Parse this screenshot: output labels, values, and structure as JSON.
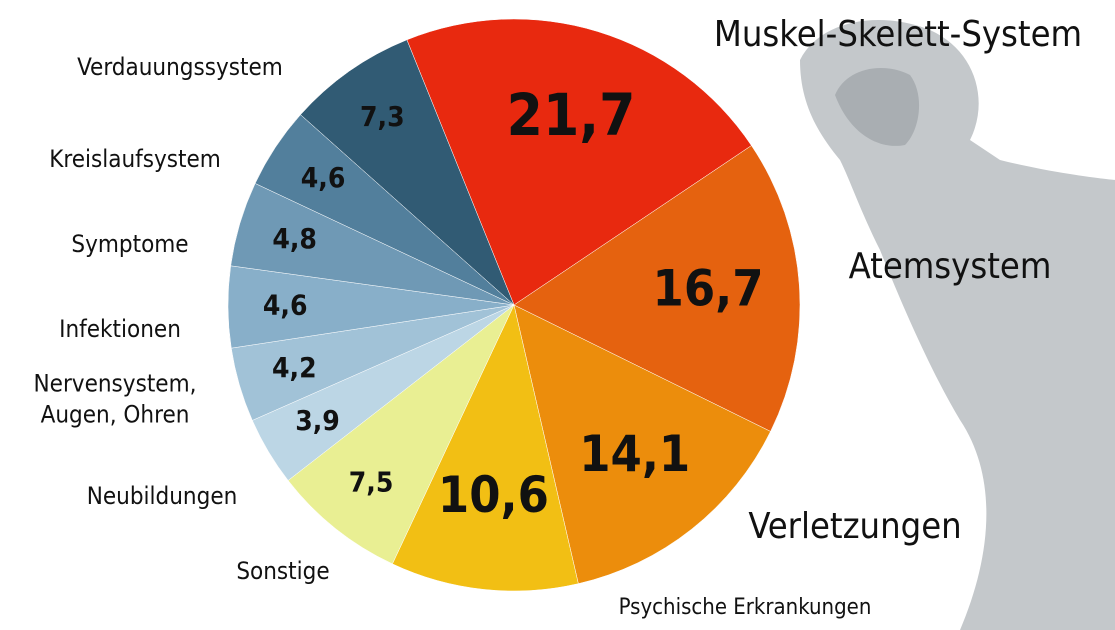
{
  "chart_data": {
    "type": "pie",
    "categories": [
      "Muskel-Skelett-System",
      "Atemsystem",
      "Verletzungen",
      "Psychische Erkrankungen",
      "Sonstige",
      "Neubildungen",
      "Nervensystem, Augen, Ohren",
      "Infektionen",
      "Symptome",
      "Kreislaufsystem",
      "Verdauungssystem"
    ],
    "values": [
      21.7,
      16.7,
      14.1,
      10.6,
      7.5,
      3.9,
      4.2,
      4.6,
      4.8,
      4.6,
      7.3
    ],
    "value_labels": [
      "21,7",
      "16,7",
      "14,1",
      "10,6",
      "7,5",
      "3,9",
      "4,2",
      "4,6",
      "4,8",
      "4,6",
      "7,3"
    ],
    "colors": [
      "#e8290f",
      "#e5620f",
      "#ec8d0c",
      "#f2bf14",
      "#e9ef93",
      "#bcd6e5",
      "#a1c2d7",
      "#88afc9",
      "#6f99b5",
      "#527f9c",
      "#315b74"
    ]
  }
}
